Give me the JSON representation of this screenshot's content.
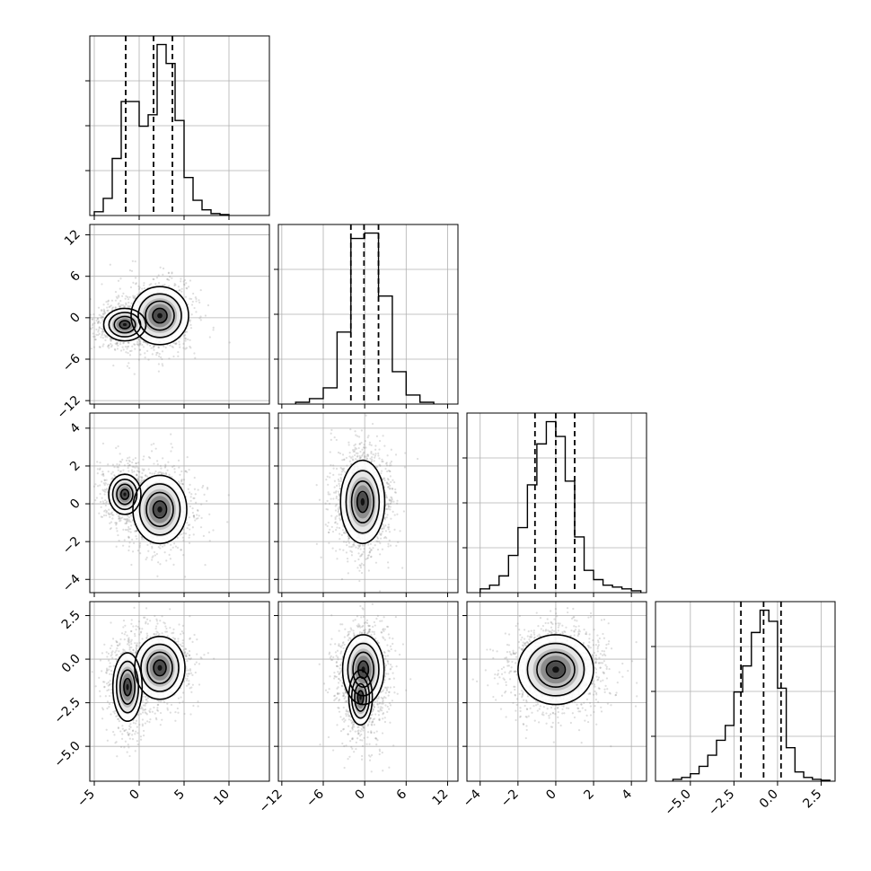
{
  "chart_data": [
    {
      "type": "histogram",
      "panel": "p1-hist",
      "grid": true,
      "xlim": [
        -5.5,
        14.5
      ],
      "bins": [
        -5,
        -4,
        -3,
        -2,
        -1,
        0,
        1,
        2,
        3,
        4,
        5,
        6,
        7,
        8,
        9,
        10
      ],
      "counts": [
        0.02,
        0.09,
        0.3,
        0.6,
        0.6,
        0.47,
        0.53,
        0.9,
        0.8,
        0.5,
        0.2,
        0.08,
        0.03,
        0.01,
        0.005
      ],
      "quantile_lines": [
        -1.5,
        1.6,
        3.7
      ]
    },
    {
      "type": "histogram",
      "panel": "p2-hist",
      "grid": true,
      "xlim": [
        -12.5,
        13.5
      ],
      "bins": [
        -10,
        -8,
        -6,
        -4,
        -2,
        0,
        2,
        4,
        6,
        8,
        10
      ],
      "counts": [
        0.01,
        0.03,
        0.09,
        0.4,
        0.92,
        0.95,
        0.6,
        0.18,
        0.05,
        0.01
      ],
      "quantile_lines": [
        -2,
        -0.1,
        2
      ]
    },
    {
      "type": "histogram",
      "panel": "p3-hist",
      "grid": true,
      "xlim": [
        -4.7,
        4.8
      ],
      "bins": [
        -4,
        -3.5,
        -3,
        -2.5,
        -2,
        -1.5,
        -1,
        -0.5,
        0,
        0.5,
        1,
        1.5,
        2,
        2.5,
        3,
        3.5,
        4,
        4.5
      ],
      "counts": [
        0.02,
        0.04,
        0.09,
        0.2,
        0.35,
        0.58,
        0.8,
        0.92,
        0.84,
        0.6,
        0.3,
        0.12,
        0.07,
        0.04,
        0.03,
        0.02,
        0.01
      ],
      "quantile_lines": [
        -1.1,
        0,
        1
      ]
    },
    {
      "type": "histogram",
      "panel": "p4-hist",
      "grid": true,
      "xlim": [
        -7,
        3.3
      ],
      "bins": [
        -6,
        -5.5,
        -5,
        -4.5,
        -4,
        -3.5,
        -3,
        -2.5,
        -2,
        -1.5,
        -1,
        -0.5,
        0,
        0.5,
        1,
        1.5,
        2,
        2.5,
        3
      ],
      "counts": [
        0.01,
        0.02,
        0.04,
        0.08,
        0.14,
        0.22,
        0.3,
        0.48,
        0.62,
        0.8,
        0.92,
        0.86,
        0.5,
        0.18,
        0.05,
        0.02,
        0.01,
        0.005
      ],
      "quantile_lines": [
        -2.1,
        -0.8,
        0.2
      ]
    },
    {
      "type": "heatmap",
      "panel": "p2-vs-p1",
      "grid": true,
      "x_param": 1,
      "y_param": 2,
      "xlim": [
        -5.5,
        14.5
      ],
      "ylim": [
        -12.5,
        13.5
      ],
      "modes": [
        {
          "x": -1.6,
          "y": -1.0,
          "sx": 1.3,
          "sy": 1.3,
          "weight": 0.45
        },
        {
          "x": 2.3,
          "y": 0.3,
          "sx": 1.6,
          "sy": 2.1,
          "weight": 0.55
        }
      ]
    },
    {
      "type": "heatmap",
      "panel": "p3-vs-p1",
      "grid": true,
      "x_param": 1,
      "y_param": 3,
      "xlim": [
        -5.5,
        14.5
      ],
      "ylim": [
        -4.7,
        4.8
      ],
      "modes": [
        {
          "x": -1.6,
          "y": 0.5,
          "sx": 1.1,
          "sy": 0.65,
          "weight": 0.4
        },
        {
          "x": 2.3,
          "y": -0.3,
          "sx": 1.5,
          "sy": 0.9,
          "weight": 0.6
        }
      ]
    },
    {
      "type": "heatmap",
      "panel": "p4-vs-p1",
      "grid": true,
      "x_param": 1,
      "y_param": 4,
      "xlim": [
        -5.5,
        14.5
      ],
      "ylim": [
        -7,
        3.3
      ],
      "modes": [
        {
          "x": -1.3,
          "y": -1.6,
          "sx": 1.0,
          "sy": 1.2,
          "weight": 0.4
        },
        {
          "x": 2.3,
          "y": -0.5,
          "sx": 1.4,
          "sy": 0.9,
          "weight": 0.6
        }
      ]
    },
    {
      "type": "heatmap",
      "panel": "p3-vs-p2",
      "grid": true,
      "x_param": 2,
      "y_param": 3,
      "xlim": [
        -12.5,
        13.5
      ],
      "ylim": [
        -4.7,
        4.8
      ],
      "modes": [
        {
          "x": -0.3,
          "y": 0.1,
          "sx": 1.6,
          "sy": 1.1,
          "weight": 1.0
        }
      ]
    },
    {
      "type": "heatmap",
      "panel": "p4-vs-p2",
      "grid": true,
      "x_param": 2,
      "y_param": 4,
      "xlim": [
        -12.5,
        13.5
      ],
      "ylim": [
        -7,
        3.3
      ],
      "modes": [
        {
          "x": -0.2,
          "y": -0.6,
          "sx": 1.5,
          "sy": 1.0,
          "weight": 0.7
        },
        {
          "x": -0.6,
          "y": -2.2,
          "sx": 1.3,
          "sy": 1.2,
          "weight": 0.3
        }
      ]
    },
    {
      "type": "heatmap",
      "panel": "p4-vs-p3",
      "grid": true,
      "x_param": 3,
      "y_param": 4,
      "xlim": [
        -4.7,
        4.8
      ],
      "ylim": [
        -7,
        3.3
      ],
      "modes": [
        {
          "x": 0,
          "y": -0.6,
          "sx": 1.0,
          "sy": 1.0,
          "weight": 1.0
        }
      ]
    }
  ],
  "axes": {
    "p1": {
      "ticks": [
        -5,
        0,
        5,
        10
      ],
      "labels": [
        "−5",
        "0",
        "5",
        "10"
      ]
    },
    "p2": {
      "ticks": [
        -12,
        -6,
        0,
        6,
        12
      ],
      "labels": [
        "−12",
        "−6",
        "0",
        "6",
        "12"
      ]
    },
    "p3": {
      "ticks": [
        -4,
        -2,
        0,
        2,
        4
      ],
      "labels": [
        "−4",
        "−2",
        "0",
        "2",
        "4"
      ]
    },
    "p4": {
      "ticks": [
        -5,
        -2.5,
        0,
        2.5
      ],
      "labels": [
        "−5.0",
        "−2.5",
        "0.0",
        "2.5"
      ]
    }
  },
  "colors": {
    "axis": "#000000",
    "grid": "#b0b0b0",
    "scatter": "#8a8a8a",
    "density_dark": "#000000",
    "background": "#ffffff"
  }
}
